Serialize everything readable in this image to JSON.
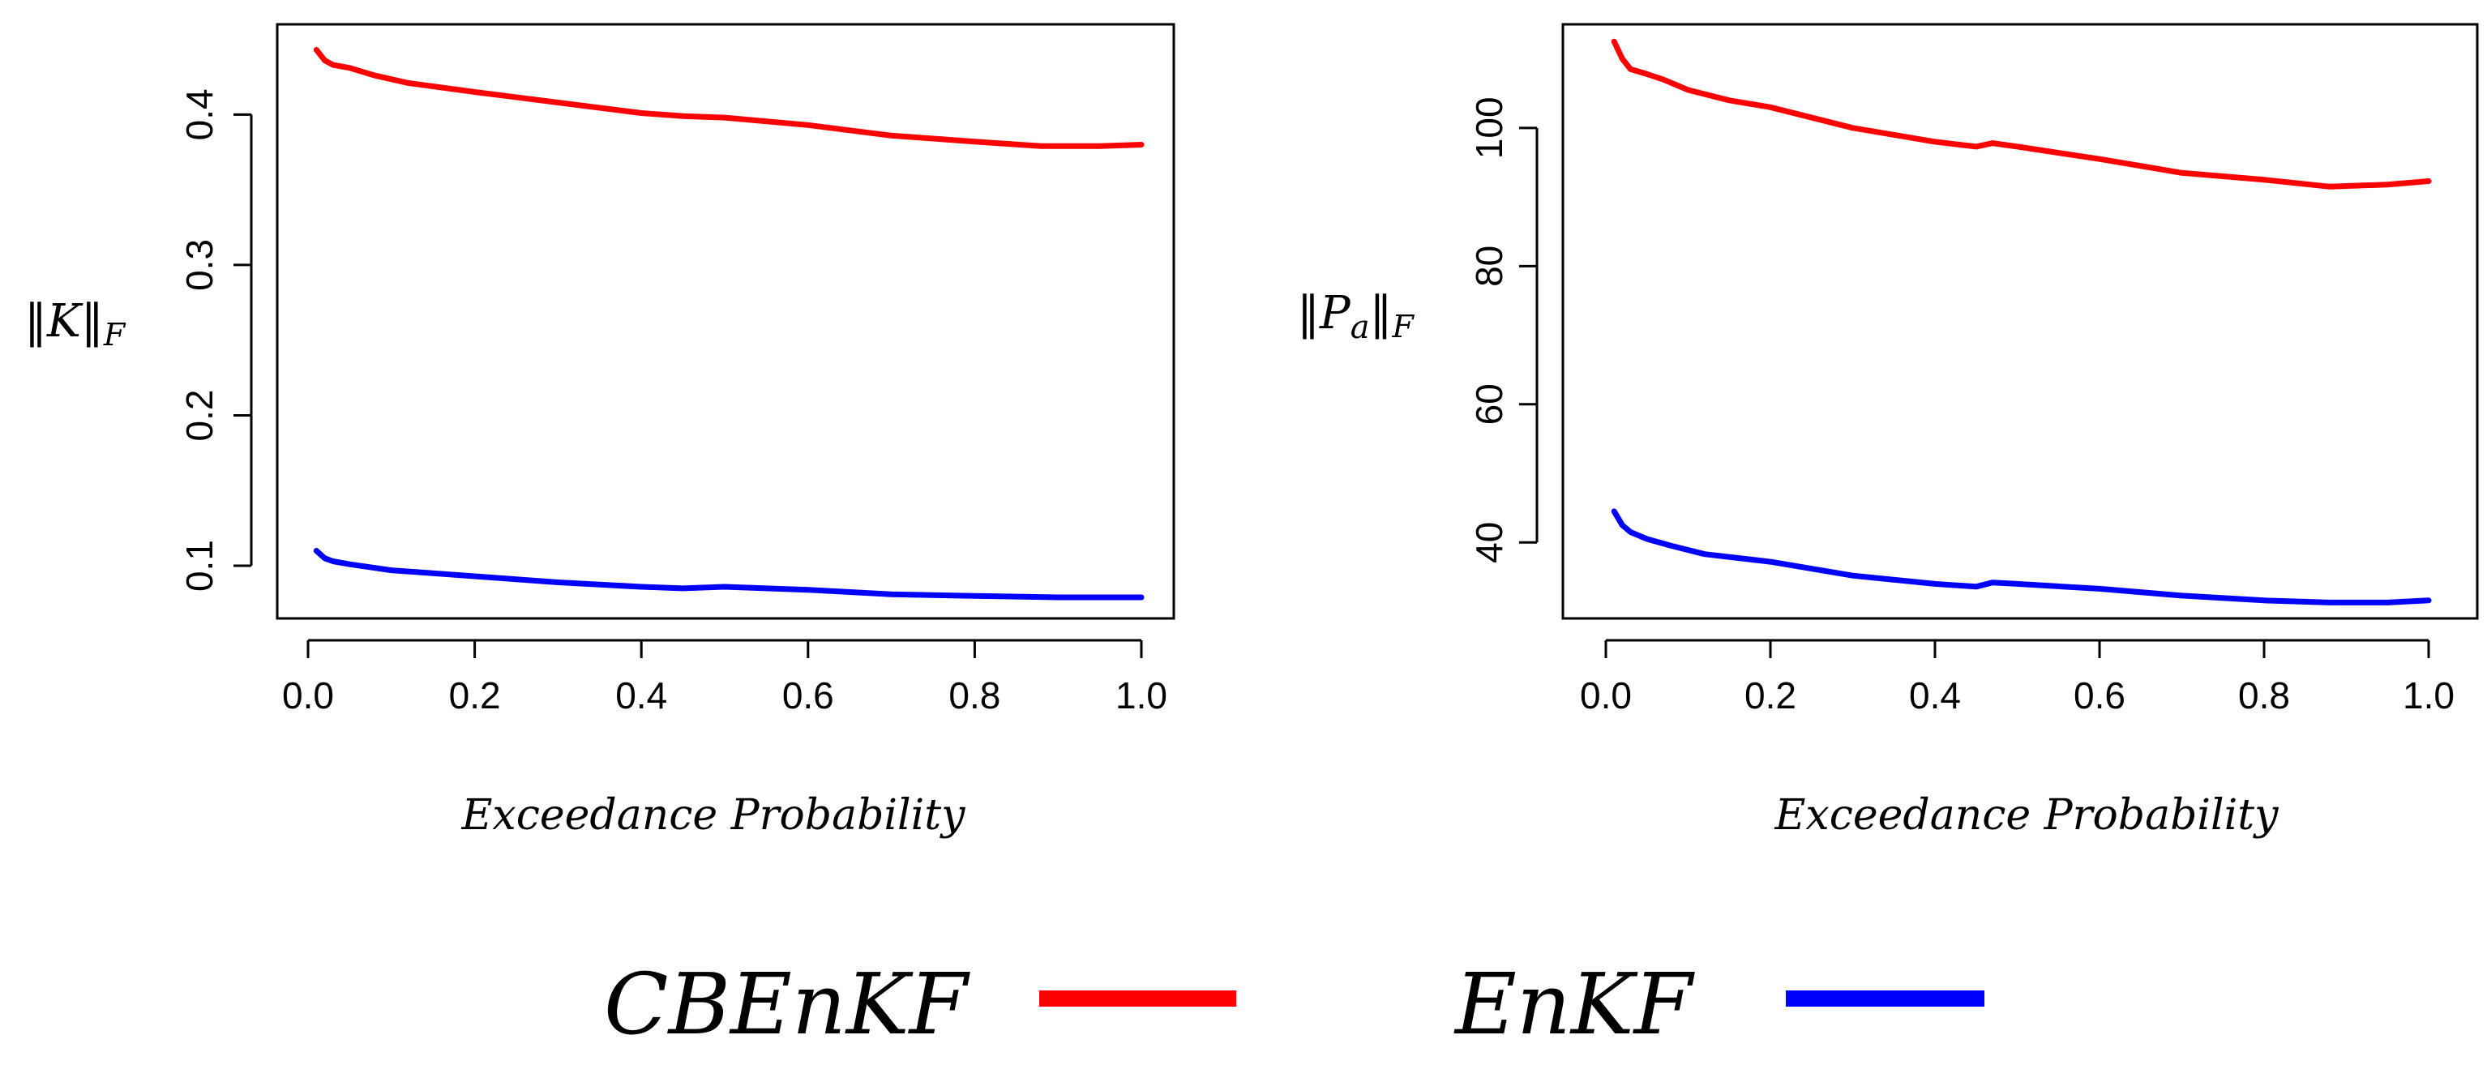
{
  "figure": {
    "legend": [
      {
        "label": "CBEnKF",
        "color": "#ff0000"
      },
      {
        "label": "EnKF",
        "color": "#0000ff"
      }
    ]
  },
  "chart_data": [
    {
      "type": "line",
      "ylabel": "‖K‖F",
      "ylabel_main": "‖K‖",
      "ylabel_sub": "F",
      "xlabel": "Exceedance Probability",
      "xlim": [
        0.0,
        1.0
      ],
      "ylim": [
        0.065,
        0.46
      ],
      "xticks": [
        0.0,
        0.2,
        0.4,
        0.6,
        0.8,
        1.0
      ],
      "xtick_labels": [
        "0.0",
        "0.2",
        "0.4",
        "0.6",
        "0.8",
        "1.0"
      ],
      "yticks": [
        0.1,
        0.2,
        0.3,
        0.4
      ],
      "ytick_labels": [
        "0.1",
        "0.2",
        "0.3",
        "0.4"
      ],
      "grid": false,
      "series": [
        {
          "name": "CBEnKF",
          "color": "#ff0000",
          "x": [
            0.01,
            0.02,
            0.03,
            0.05,
            0.08,
            0.12,
            0.2,
            0.3,
            0.4,
            0.45,
            0.5,
            0.6,
            0.7,
            0.8,
            0.88,
            0.95,
            1.0
          ],
          "y": [
            0.443,
            0.436,
            0.433,
            0.431,
            0.426,
            0.421,
            0.415,
            0.408,
            0.401,
            0.399,
            0.398,
            0.393,
            0.386,
            0.382,
            0.379,
            0.379,
            0.38
          ]
        },
        {
          "name": "EnKF",
          "color": "#0000ff",
          "x": [
            0.01,
            0.02,
            0.03,
            0.05,
            0.1,
            0.2,
            0.3,
            0.4,
            0.45,
            0.5,
            0.6,
            0.7,
            0.8,
            0.9,
            1.0
          ],
          "y": [
            0.11,
            0.105,
            0.103,
            0.101,
            0.097,
            0.093,
            0.089,
            0.086,
            0.085,
            0.086,
            0.084,
            0.081,
            0.08,
            0.079,
            0.079
          ]
        }
      ]
    },
    {
      "type": "line",
      "ylabel": "‖Pa‖F",
      "ylabel_main": "‖P",
      "ylabel_sub_a": "a",
      "ylabel_tail": "‖",
      "ylabel_sub": "F",
      "xlabel": "Exceedance Probability",
      "xlim": [
        0.0,
        1.0
      ],
      "ylim": [
        29.0,
        115.0
      ],
      "xticks": [
        0.0,
        0.2,
        0.4,
        0.6,
        0.8,
        1.0
      ],
      "xtick_labels": [
        "0.0",
        "0.2",
        "0.4",
        "0.6",
        "0.8",
        "1.0"
      ],
      "yticks": [
        40,
        60,
        80,
        100
      ],
      "ytick_labels": [
        "40",
        "60",
        "80",
        "100"
      ],
      "grid": false,
      "series": [
        {
          "name": "CBEnKF",
          "color": "#ff0000",
          "x": [
            0.01,
            0.02,
            0.03,
            0.05,
            0.07,
            0.1,
            0.15,
            0.2,
            0.3,
            0.4,
            0.45,
            0.47,
            0.5,
            0.6,
            0.7,
            0.8,
            0.88,
            0.95,
            1.0
          ],
          "y": [
            112.5,
            110.0,
            108.5,
            107.8,
            107.0,
            105.5,
            104.0,
            103.0,
            100.0,
            98.0,
            97.3,
            97.8,
            97.3,
            95.5,
            93.5,
            92.5,
            91.5,
            91.8,
            92.3
          ]
        },
        {
          "name": "EnKF",
          "color": "#0000ff",
          "x": [
            0.01,
            0.02,
            0.03,
            0.05,
            0.08,
            0.12,
            0.2,
            0.3,
            0.4,
            0.45,
            0.47,
            0.5,
            0.6,
            0.7,
            0.8,
            0.88,
            0.95,
            1.0
          ],
          "y": [
            44.5,
            42.5,
            41.5,
            40.5,
            39.5,
            38.3,
            37.2,
            35.2,
            34.0,
            33.6,
            34.2,
            34.0,
            33.3,
            32.3,
            31.6,
            31.3,
            31.3,
            31.6
          ]
        }
      ]
    }
  ]
}
